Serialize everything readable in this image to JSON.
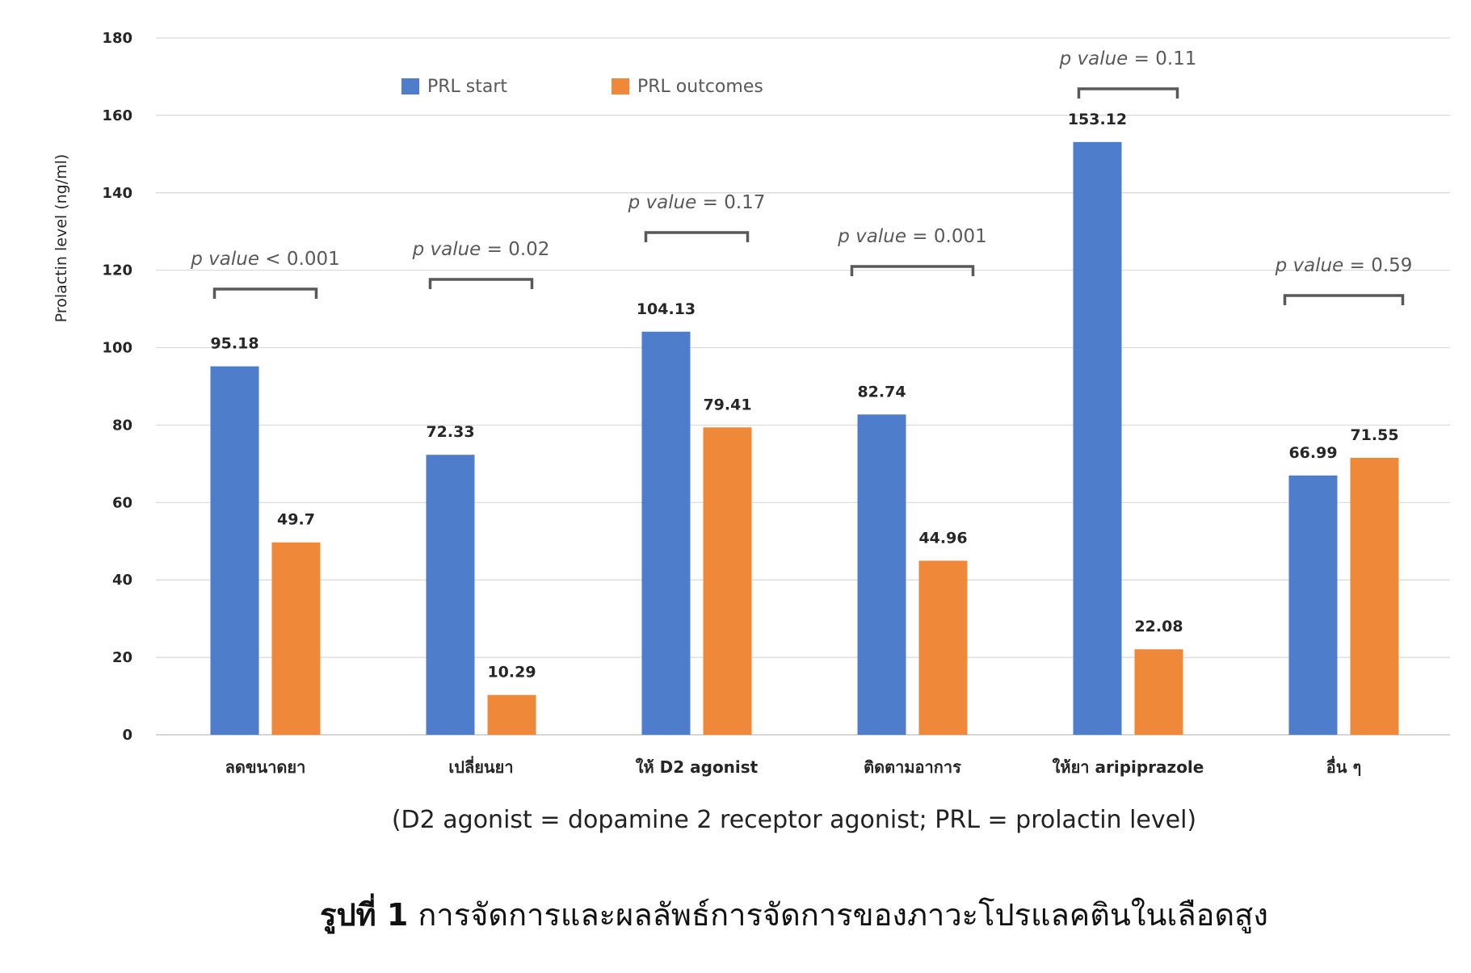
{
  "chart_data": {
    "type": "bar",
    "ylabel": "Prolactin level (ng/ml)",
    "ylim": [
      0,
      180
    ],
    "yticks": [
      0,
      20,
      40,
      60,
      80,
      100,
      120,
      140,
      160,
      180
    ],
    "grid": true,
    "legend_position": "top-left",
    "categories": [
      "ลดขนาดยา",
      "เปลี่ยนยา",
      "ให้ D2 agonist",
      "ติดตามอาการ",
      "ให้ยา aripiprazole",
      "อื่น ๆ"
    ],
    "series": [
      {
        "name": "PRL start",
        "color": "#4e7dcb",
        "values": [
          95.18,
          72.33,
          104.13,
          82.74,
          153.12,
          66.99
        ]
      },
      {
        "name": "PRL outcomes",
        "color": "#f0883a",
        "values": [
          49.7,
          10.29,
          79.41,
          44.96,
          22.08,
          71.55
        ]
      }
    ],
    "annotations": [
      {
        "prefix": "p value",
        "rest": " < 0.001"
      },
      {
        "prefix": "p value",
        "rest": " = 0.02"
      },
      {
        "prefix": "p value",
        "rest": " = 0.17"
      },
      {
        "prefix": "p value",
        "rest": " = 0.001"
      },
      {
        "prefix": "p value",
        "rest": " = 0.11"
      },
      {
        "prefix": "p value",
        "rest": " = 0.59"
      }
    ]
  },
  "note": "(D2 agonist = dopamine 2 receptor agonist; PRL = prolactin level)",
  "caption": {
    "label": "รูปที่ 1",
    "text": " การจัดการและผลลัพธ์การจัดการของภาวะโปรแลคตินในเลือดสูง"
  }
}
